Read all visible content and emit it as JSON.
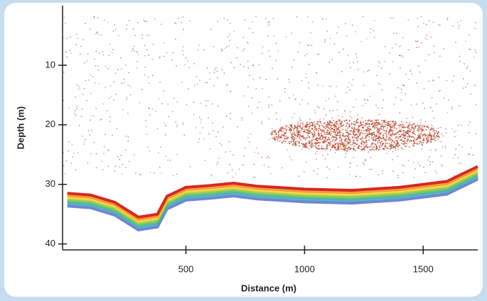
{
  "chart_data": {
    "type": "echogram",
    "x_label": "Distance (m)",
    "y_label": "Depth (m)",
    "xlim": [
      -20,
      1730
    ],
    "xticks": [
      500,
      1000,
      1500
    ],
    "ylim": [
      0,
      41
    ],
    "yticks": [
      10,
      20,
      30,
      40
    ],
    "y_inverted": true,
    "x": [
      0,
      100,
      200,
      300,
      380,
      420,
      500,
      600,
      700,
      800,
      1000,
      1200,
      1400,
      1600,
      1730
    ],
    "values": [
      31.5,
      31.8,
      33,
      35.5,
      35,
      32,
      30.5,
      30.2,
      29.8,
      30.3,
      30.8,
      31,
      30.5,
      29.5,
      27
    ],
    "color": "#d8281e"
  }
}
